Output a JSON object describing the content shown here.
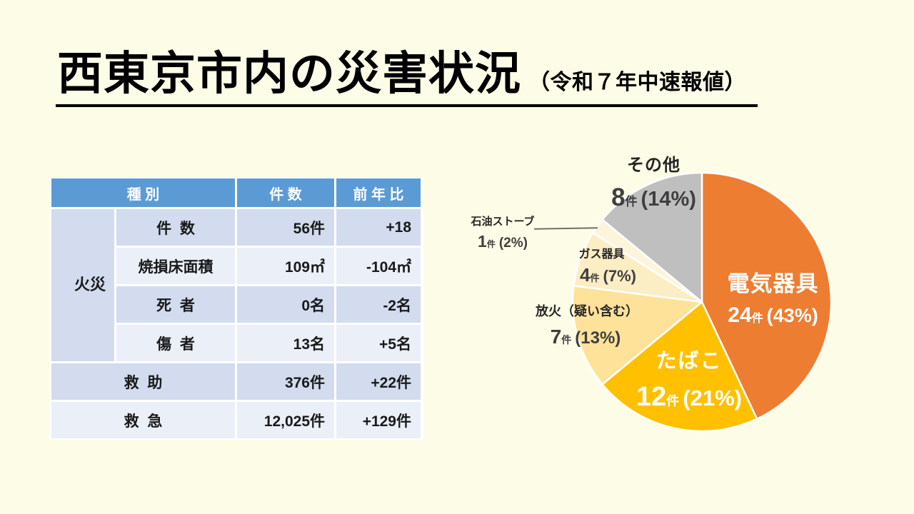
{
  "page": {
    "background_color": "#FDFDE7"
  },
  "title": {
    "text": "西東京市内の災害状況",
    "subtitle": "（令和７年中速報値）"
  },
  "table": {
    "headers": {
      "type": "種 別",
      "count": "件 数",
      "yoy": "前 年 比"
    },
    "category_fire": "火災",
    "fire_rows": [
      {
        "label": "件  数",
        "value": "56件",
        "diff": "+18"
      },
      {
        "label": "焼損床面積",
        "value": "109㎡",
        "diff": "-104㎡"
      },
      {
        "label": "死  者",
        "value": "0名",
        "diff": "-2名"
      },
      {
        "label": "傷  者",
        "value": "13名",
        "diff": "+5名"
      }
    ],
    "other_rows": [
      {
        "label": "救  助",
        "value": "376件",
        "diff": "+22件"
      },
      {
        "label": "救  急",
        "value": "12,025件",
        "diff": "+129件"
      }
    ],
    "colors": {
      "header_bg": "#5B9BD5",
      "band_dark": "#D2DCEE",
      "band_light": "#EAEFF8"
    }
  },
  "chart_data": {
    "type": "pie",
    "title": "",
    "start_angle_deg": 0,
    "direction": "clockwise",
    "categories": [
      "電気器具",
      "たばこ",
      "放火（疑い含む）",
      "ガス器具",
      "石油ストーブ",
      "その他"
    ],
    "values": [
      24,
      12,
      7,
      4,
      1,
      8
    ],
    "percentages": [
      43,
      21,
      13,
      7,
      2,
      14
    ],
    "unit": "件",
    "slices": [
      {
        "id": "electric",
        "name": "電気器具",
        "value": 24,
        "unit": "件",
        "pct": 43,
        "pct_label": "(43%)",
        "color": "#ED7D31",
        "label_position": "inside",
        "label_color": "#FFFFFF"
      },
      {
        "id": "tobacco",
        "name": "たばこ",
        "value": 12,
        "unit": "件",
        "pct": 21,
        "pct_label": "(21%)",
        "color": "#FFC000",
        "label_position": "inside",
        "label_color": "#FFFFFF"
      },
      {
        "id": "arson",
        "name": "放火（疑い含む）",
        "value": 7,
        "unit": "件",
        "pct": 13,
        "pct_label": "(13%)",
        "color": "#FFE299",
        "label_position": "outside",
        "label_color": "#3F3F3F"
      },
      {
        "id": "gas",
        "name": "ガス器具",
        "value": 4,
        "unit": "件",
        "pct": 7,
        "pct_label": "(7%)",
        "color": "#FBEDC4",
        "label_position": "outside",
        "label_color": "#3F3F3F"
      },
      {
        "id": "oil-stove",
        "name": "石油ストーブ",
        "value": 1,
        "unit": "件",
        "pct": 2,
        "pct_label": "(2%)",
        "color": "#FDF4DC",
        "label_position": "outside",
        "label_color": "#3F3F3F"
      },
      {
        "id": "other",
        "name": "その他",
        "value": 8,
        "unit": "件",
        "pct": 14,
        "pct_label": "(14%)",
        "color": "#BFBFBF",
        "label_position": "outside",
        "label_color": "#3F3F3F"
      }
    ]
  }
}
